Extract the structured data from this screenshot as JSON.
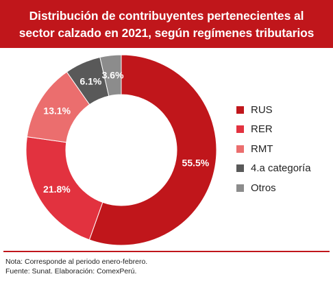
{
  "header": {
    "title_line1": "Distribución de contribuyentes pertenecientes al",
    "title_line2": "sector calzado en 2021, según regímenes tributarios"
  },
  "chart_data": {
    "type": "pie",
    "variant": "donut",
    "title": "Distribución de contribuyentes pertenecientes al sector calzado en 2021, según regímenes tributarios",
    "unit": "%",
    "legend_position": "right",
    "categories": [
      "RUS",
      "RER",
      "RMT",
      "4.a categoría",
      "Otros"
    ],
    "values": [
      55.5,
      21.8,
      13.1,
      6.1,
      3.6
    ],
    "labels": [
      "55.5%",
      "21.8%",
      "13.1%",
      "6.1%",
      "3.6%"
    ],
    "colors": [
      "#c0161b",
      "#e2323f",
      "#eb6e6e",
      "#595959",
      "#8c8c8c"
    ]
  },
  "footer": {
    "note": "Nota: Corresponde al periodo enero-febrero.",
    "source": "Fuente: Sunat. Elaboración: ComexPerú."
  }
}
